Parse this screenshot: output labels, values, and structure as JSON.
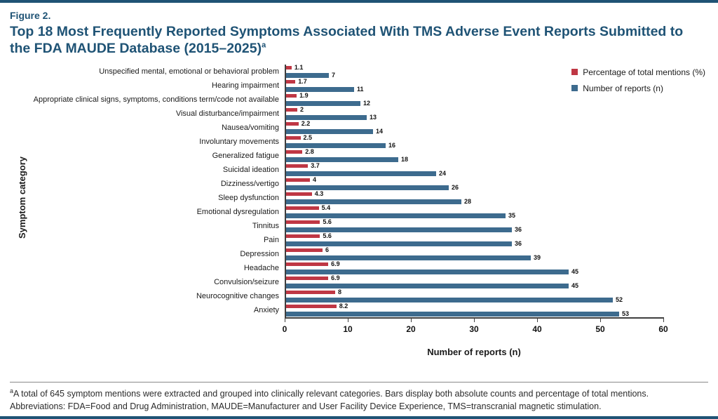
{
  "figure_label": "Figure 2.",
  "title": "Top 18 Most Frequently Reported Symptoms Associated With TMS Adverse Event Reports Submitted to the FDA MAUDE Database (2015–2025)",
  "title_sup": "a",
  "legend": [
    {
      "label": "Percentage of total mentions (%)",
      "color": "#bf3744"
    },
    {
      "label": "Number of reports (n)",
      "color": "#3d6b8e"
    }
  ],
  "axis": {
    "x_title": "Number of reports (n)",
    "y_title": "Symptom category"
  },
  "chart_data": {
    "type": "bar",
    "orientation": "horizontal",
    "title": "Top 18 Most Frequently Reported Symptoms Associated With TMS Adverse Event Reports Submitted to the FDA MAUDE Database (2015–2025)",
    "xlabel": "Number of reports (n)",
    "ylabel": "Symptom category",
    "xlim": [
      0,
      60
    ],
    "ticks": [
      0,
      10,
      20,
      30,
      40,
      50,
      60
    ],
    "grid": false,
    "legend_position": "top-right",
    "categories": [
      "Unspecified mental, emotional or behavioral problem",
      "Hearing impairment",
      "Appropriate clinical signs, symptoms, conditions term/code not available",
      "Visual disturbance/impairment",
      "Nausea/vomiting",
      "Involuntary movements",
      "Generalized fatigue",
      "Suicidal ideation",
      "Dizziness/vertigo",
      "Sleep dysfunction",
      "Emotional dysregulation",
      "Tinnitus",
      "Pain",
      "Depression",
      "Headache",
      "Convulsion/seizure",
      "Neurocognitive changes",
      "Anxiety"
    ],
    "series": [
      {
        "name": "Percentage of total mentions (%)",
        "color": "#bf3744",
        "values": [
          1.1,
          1.7,
          1.9,
          2,
          2.2,
          2.5,
          2.8,
          3.7,
          4,
          4.3,
          5.4,
          5.6,
          5.6,
          6,
          6.9,
          6.9,
          8,
          8.2
        ]
      },
      {
        "name": "Number of reports (n)",
        "color": "#3d6b8e",
        "values": [
          7,
          11,
          12,
          13,
          14,
          16,
          18,
          24,
          26,
          28,
          35,
          36,
          36,
          39,
          45,
          45,
          52,
          53
        ]
      }
    ]
  },
  "footnote": {
    "sup": "a",
    "line1": "A total of 645 symptom mentions were extracted and grouped into clinically relevant categories. Bars display both absolute counts and percentage of total mentions.",
    "line2": "Abbreviations: FDA=Food and Drug Administration, MAUDE=Manufacturer and User Facility Device Experience, TMS=transcranial magnetic stimulation."
  }
}
